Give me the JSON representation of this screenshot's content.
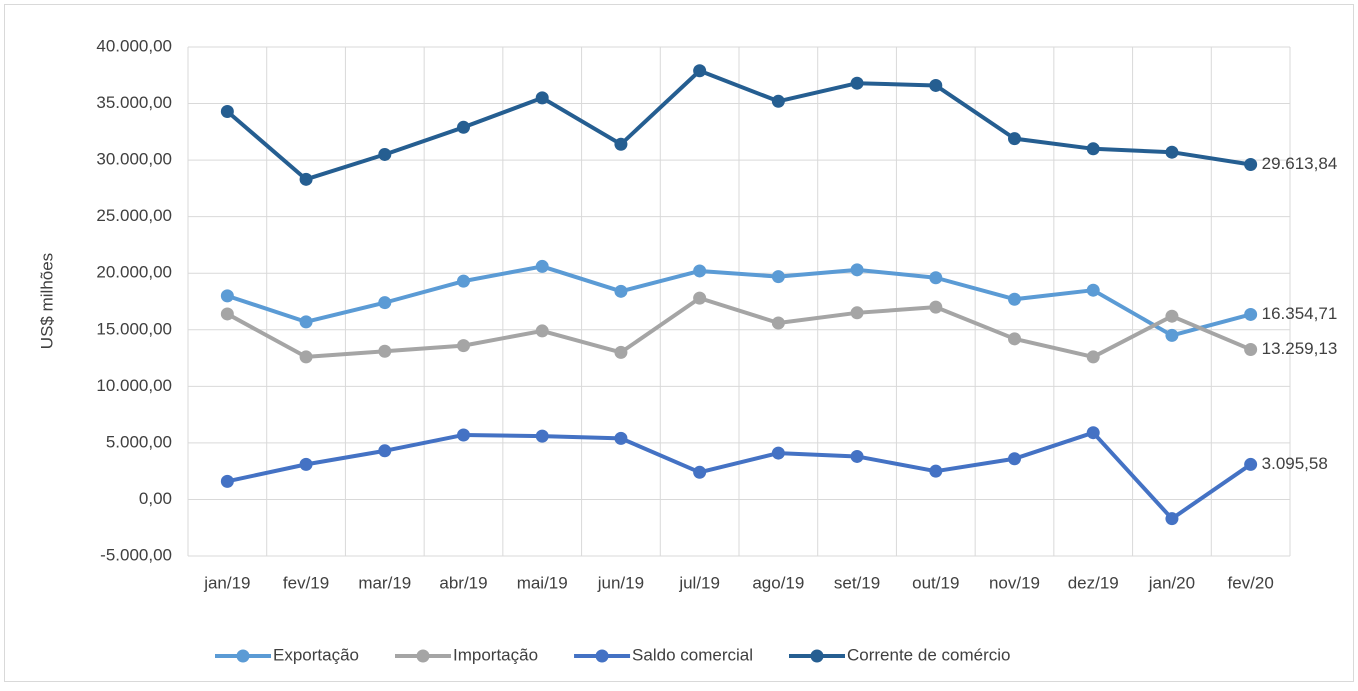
{
  "chart_data": {
    "type": "line",
    "y_label": "US$ milhões",
    "categories": [
      "jan/19",
      "fev/19",
      "mar/19",
      "abr/19",
      "mai/19",
      "jun/19",
      "jul/19",
      "ago/19",
      "set/19",
      "out/19",
      "nov/19",
      "dez/19",
      "jan/20",
      "fev/20"
    ],
    "series": [
      {
        "name": "Exportação",
        "color": "#5b9bd5",
        "values": [
          18000,
          15700,
          17400,
          19300,
          20600,
          18400,
          20200,
          19700,
          20300,
          19600,
          17700,
          18500,
          14500,
          16354.71
        ],
        "value_labels": [
          null,
          null,
          null,
          null,
          null,
          null,
          null,
          null,
          null,
          null,
          null,
          null,
          null,
          "16.354,71"
        ]
      },
      {
        "name": "Importação",
        "color": "#a5a5a5",
        "values": [
          16400,
          12600,
          13100,
          13600,
          14900,
          13000,
          17800,
          15600,
          16500,
          17000,
          14200,
          12600,
          16200,
          13259.13
        ],
        "value_labels": [
          null,
          null,
          null,
          null,
          null,
          null,
          null,
          null,
          null,
          null,
          null,
          null,
          null,
          "13.259,13"
        ]
      },
      {
        "name": "Saldo comercial",
        "color": "#4472c4",
        "values": [
          1600,
          3100,
          4300,
          5700,
          5600,
          5400,
          2400,
          4100,
          3800,
          2500,
          3600,
          5900,
          -1700,
          3095.58
        ],
        "value_labels": [
          null,
          null,
          null,
          null,
          null,
          null,
          null,
          null,
          null,
          null,
          null,
          null,
          null,
          "3.095,58"
        ]
      },
      {
        "name": "Corrente de comércio",
        "color": "#255e91",
        "values": [
          34300,
          28300,
          30500,
          32900,
          35500,
          31400,
          37900,
          35200,
          36800,
          36600,
          31900,
          31000,
          30700,
          29613.84
        ],
        "value_labels": [
          null,
          null,
          null,
          null,
          null,
          null,
          null,
          null,
          null,
          null,
          null,
          null,
          null,
          "29.613,84"
        ]
      }
    ],
    "ylim": [
      -5000,
      40000
    ],
    "yticks": [
      {
        "value": -5000,
        "label": "-5.000,00"
      },
      {
        "value": 0,
        "label": "0,00"
      },
      {
        "value": 5000,
        "label": "5.000,00"
      },
      {
        "value": 10000,
        "label": "10.000,00"
      },
      {
        "value": 15000,
        "label": "15.000,00"
      },
      {
        "value": 20000,
        "label": "20.000,00"
      },
      {
        "value": 25000,
        "label": "25.000,00"
      },
      {
        "value": 30000,
        "label": "30.000,00"
      },
      {
        "value": 35000,
        "label": "35.000,00"
      },
      {
        "value": 40000,
        "label": "40.000,00"
      }
    ],
    "grid": true,
    "legend": "bottom"
  }
}
